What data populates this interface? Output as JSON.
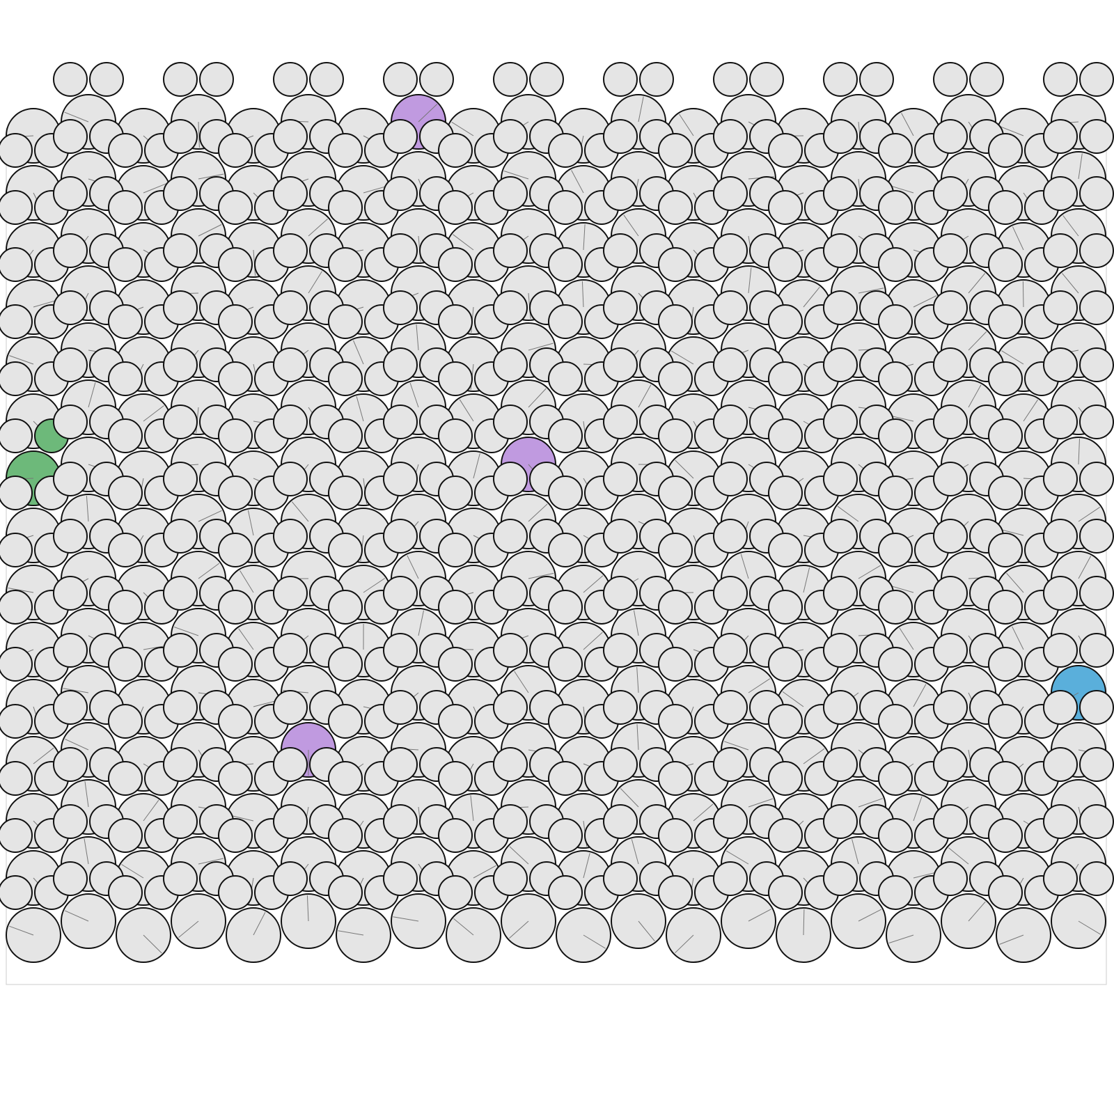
{
  "diagram": {
    "kind": "circle-packing",
    "columns": 20,
    "rows": 15,
    "grid_style": "hexagonal",
    "disk_sizes": [
      "small",
      "medium",
      "large"
    ],
    "default_fill": "#e5e5e5",
    "outline_color": "#111111",
    "needle_color": "#777777",
    "frame_color": "#d4d4d4",
    "background": "#ffffff",
    "highlight_pairs": [
      {
        "color_name": "green",
        "fill": "#6db97a",
        "column": 0,
        "row": 6
      },
      {
        "color_name": "blue",
        "fill": "#5aafdb",
        "column": 19,
        "row": 10
      },
      {
        "color_name": "purple",
        "fill": "#c09ae0",
        "column": 7,
        "row": 0
      },
      {
        "color_name": "purple",
        "fill": "#c09ae0",
        "column": 9,
        "row": 6
      },
      {
        "color_name": "purple",
        "fill": "#c09ae0",
        "column": 5,
        "row": 11
      }
    ]
  }
}
